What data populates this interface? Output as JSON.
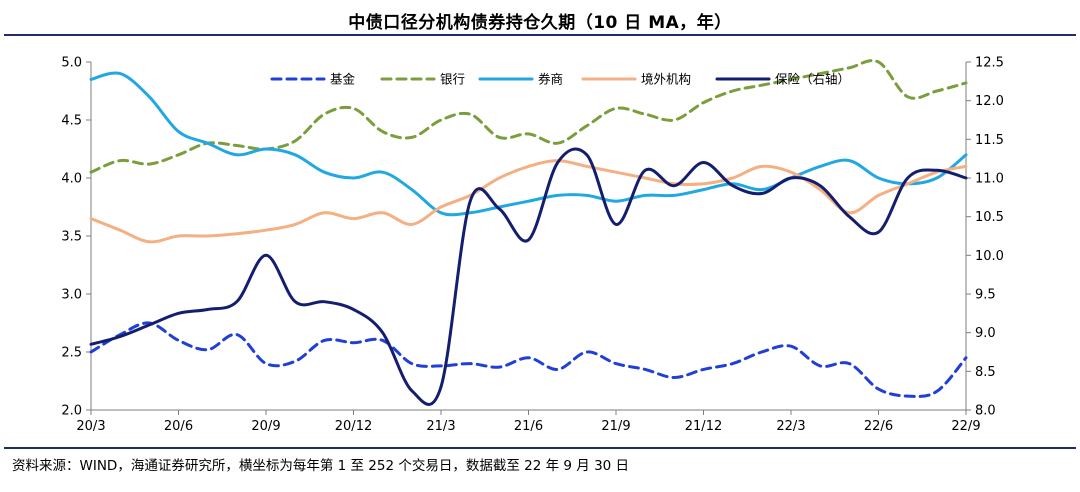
{
  "title": "中债口径分机构债券持仓久期（10 日 MA，年）",
  "source_note": "资料来源：WIND，海通证券研究所，横坐标为每年第 1 至 252 个交易日，数据截至 22 年 9 月 30 日",
  "chart_data": {
    "type": "line",
    "title": "中债口径分机构债券持仓久期（10 日 MA，年）",
    "x": [
      0,
      1,
      2,
      3,
      4,
      5,
      6,
      7,
      8,
      9,
      10,
      11,
      12,
      13,
      14,
      15,
      16,
      17,
      18,
      19,
      20,
      21,
      22,
      23,
      24,
      25,
      26,
      27,
      28,
      29,
      30
    ],
    "x_tick_labels": [
      "20/3",
      "20/6",
      "20/9",
      "20/12",
      "21/3",
      "21/6",
      "21/9",
      "21/12",
      "22/3",
      "22/6",
      "22/9"
    ],
    "x_tick_positions": [
      0,
      3,
      6,
      9,
      12,
      15,
      18,
      21,
      24,
      27,
      30
    ],
    "y_left_lim": [
      2.0,
      5.0
    ],
    "y_left_ticks": [
      "2.0",
      "2.5",
      "3.0",
      "3.5",
      "4.0",
      "4.5",
      "5.0"
    ],
    "y_right_lim": [
      8.0,
      12.5
    ],
    "y_right_ticks": [
      "8.0",
      "8.5",
      "9.0",
      "9.5",
      "10.0",
      "10.5",
      "11.0",
      "11.5",
      "12.0",
      "12.5"
    ],
    "series": [
      {
        "name": "基金",
        "axis": "left",
        "color": "#1f3fd8",
        "style": "dashed",
        "values": [
          2.5,
          2.65,
          2.75,
          2.6,
          2.52,
          2.65,
          2.4,
          2.42,
          2.6,
          2.58,
          2.6,
          2.4,
          2.38,
          2.4,
          2.37,
          2.45,
          2.35,
          2.5,
          2.4,
          2.35,
          2.28,
          2.35,
          2.4,
          2.5,
          2.55,
          2.38,
          2.4,
          2.18,
          2.12,
          2.16,
          2.45
        ]
      },
      {
        "name": "银行",
        "axis": "left",
        "color": "#7a9e3c",
        "style": "dashed",
        "values": [
          4.05,
          4.15,
          4.12,
          4.2,
          4.3,
          4.28,
          4.25,
          4.32,
          4.55,
          4.6,
          4.4,
          4.35,
          4.5,
          4.55,
          4.35,
          4.38,
          4.3,
          4.45,
          4.6,
          4.55,
          4.5,
          4.65,
          4.75,
          4.8,
          4.85,
          4.9,
          4.95,
          5.0,
          4.7,
          4.75,
          4.82
        ]
      },
      {
        "name": "券商",
        "axis": "left",
        "color": "#21a8e3",
        "style": "solid",
        "values": [
          4.85,
          4.9,
          4.7,
          4.4,
          4.3,
          4.2,
          4.25,
          4.2,
          4.05,
          4.0,
          4.05,
          3.9,
          3.7,
          3.7,
          3.75,
          3.8,
          3.85,
          3.85,
          3.8,
          3.85,
          3.85,
          3.9,
          3.95,
          3.9,
          4.0,
          4.1,
          4.15,
          4.0,
          3.95,
          4.0,
          4.2
        ]
      },
      {
        "name": "境外机构",
        "axis": "left",
        "color": "#f4b083",
        "style": "solid",
        "values": [
          3.65,
          3.55,
          3.45,
          3.5,
          3.5,
          3.52,
          3.55,
          3.6,
          3.7,
          3.65,
          3.7,
          3.6,
          3.75,
          3.85,
          4.0,
          4.1,
          4.15,
          4.1,
          4.05,
          4.0,
          3.95,
          3.95,
          4.0,
          4.1,
          4.05,
          3.9,
          3.7,
          3.85,
          3.95,
          4.05,
          4.1
        ]
      },
      {
        "name": "保险（右轴）",
        "axis": "right",
        "color": "#141e6e",
        "style": "solid",
        "values": [
          8.85,
          8.95,
          9.1,
          9.25,
          9.3,
          9.4,
          10.0,
          9.4,
          9.4,
          9.3,
          9.0,
          8.25,
          8.3,
          10.7,
          10.6,
          10.2,
          11.2,
          11.3,
          10.4,
          11.1,
          10.9,
          11.2,
          10.9,
          10.8,
          11.0,
          10.9,
          10.5,
          10.3,
          11.0,
          11.1,
          11.0
        ]
      }
    ],
    "ylabel_left": "",
    "ylabel_right": "",
    "legend_position": "top"
  }
}
